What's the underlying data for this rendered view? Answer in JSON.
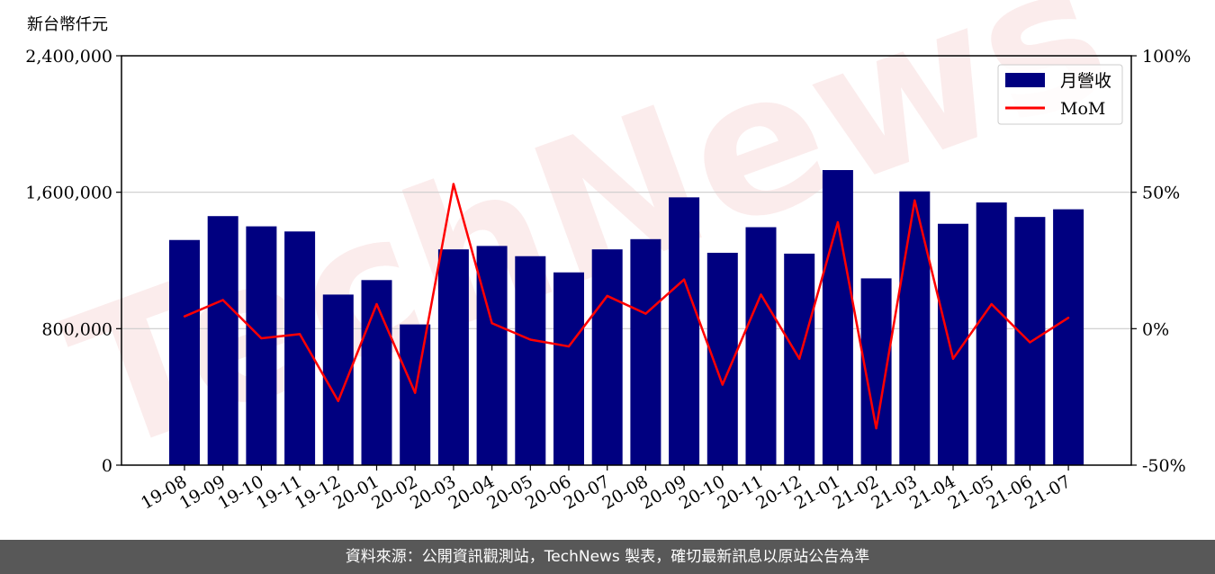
{
  "chart_data": {
    "type": "bar",
    "unit_label": "新台幣仟元",
    "categories": [
      "19-08",
      "19-09",
      "19-10",
      "19-11",
      "19-12",
      "20-01",
      "20-02",
      "20-03",
      "20-04",
      "20-05",
      "20-06",
      "20-07",
      "20-08",
      "20-09",
      "20-10",
      "20-11",
      "20-12",
      "21-01",
      "21-02",
      "21-03",
      "21-04",
      "21-05",
      "21-06",
      "21-07"
    ],
    "series": [
      {
        "name": "月營收",
        "type": "bar",
        "axis": "left",
        "color": "#000080",
        "values": [
          1320000,
          1460000,
          1400000,
          1370000,
          1000000,
          1085000,
          825000,
          1265000,
          1285000,
          1225000,
          1130000,
          1265000,
          1325000,
          1570000,
          1245000,
          1395000,
          1240000,
          1730000,
          1095000,
          1605000,
          1415000,
          1540000,
          1455000,
          1500000
        ]
      },
      {
        "name": "MoM",
        "type": "line",
        "axis": "right",
        "color": "#ff0000",
        "values": [
          4.5,
          10.5,
          -3.5,
          -2,
          -26.5,
          9,
          -23.5,
          53,
          2,
          -4,
          -6.5,
          12,
          5.5,
          18,
          -20.5,
          12.5,
          -11,
          39,
          -36.5,
          47,
          -11,
          9,
          -5,
          4
        ]
      }
    ],
    "y_left": {
      "ylim": [
        0,
        2400000
      ],
      "ticks": [
        "0",
        "800,000",
        "1,600,000",
        "2,400,000"
      ]
    },
    "y_right": {
      "ylim": [
        -50,
        100
      ],
      "ticks": [
        "-50%",
        "0%",
        "50%",
        "100%"
      ]
    },
    "grid": "horizontal",
    "legend_position": "top-right"
  },
  "watermark": "TechNews",
  "footer": "資料來源：公開資訊觀測站，TechNews 製表，確切最新訊息以原站公告為準"
}
